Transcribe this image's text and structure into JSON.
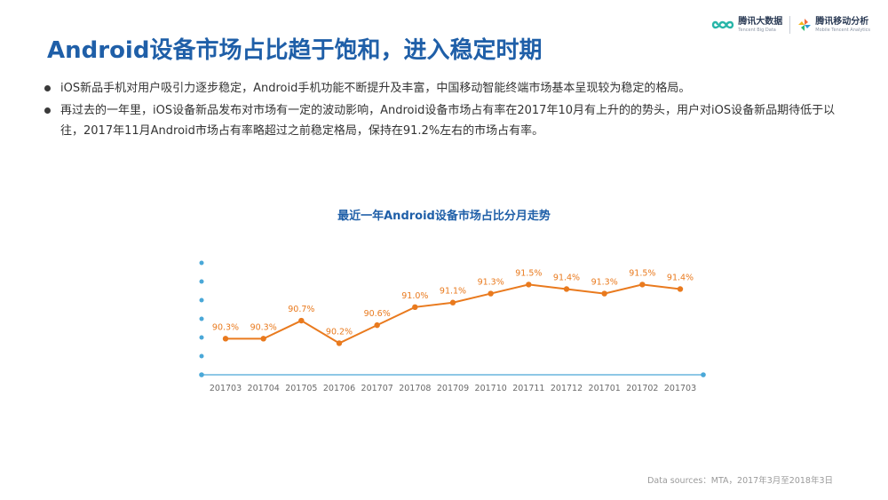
{
  "header": {
    "logos": [
      {
        "name": "腾讯大数据",
        "sub": "Tencent Big Data"
      },
      {
        "name": "腾讯移动分析",
        "sub": "Mobile Tencent Analytics"
      }
    ]
  },
  "title": "Android设备市场占比趋于饱和，进入稳定时期",
  "bullets": [
    "iOS新品手机对用户吸引力逐步稳定，Android手机功能不断提升及丰富，中国移动智能终端市场基本呈现较为稳定的格局。",
    "再过去的一年里，iOS设备新品发布对市场有一定的波动影响，Android设备市场占有率在2017年10月有上升的的势头，用户对iOS设备新品期待低于以往，2017年11月Android市场占有率略超过之前稳定格局，保持在91.2%左右的市场占有率。"
  ],
  "chart_data": {
    "type": "line",
    "title": "最近一年Android设备市场占比分月走势",
    "categories": [
      "201703",
      "201704",
      "201705",
      "201706",
      "201707",
      "201708",
      "201709",
      "201710",
      "201711",
      "201712",
      "201701",
      "201702",
      "201703"
    ],
    "values": [
      90.3,
      90.3,
      90.7,
      90.2,
      90.6,
      91.0,
      91.1,
      91.3,
      91.5,
      91.4,
      91.3,
      91.5,
      91.4
    ],
    "data_labels": [
      "90.3%",
      "90.3%",
      "90.7%",
      "90.2%",
      "90.6%",
      "91.0%",
      "91.1%",
      "91.3%",
      "91.5%",
      "91.4%",
      "91.3%",
      "91.5%",
      "91.4%"
    ],
    "ylim": [
      89.5,
      92.0
    ],
    "line_color": "#e97a1e",
    "axis_color": "#4aa8d8",
    "label_color": "#e97a1e",
    "grid": false
  },
  "source": "Data sources：MTA，2017年3月至2018年3日"
}
